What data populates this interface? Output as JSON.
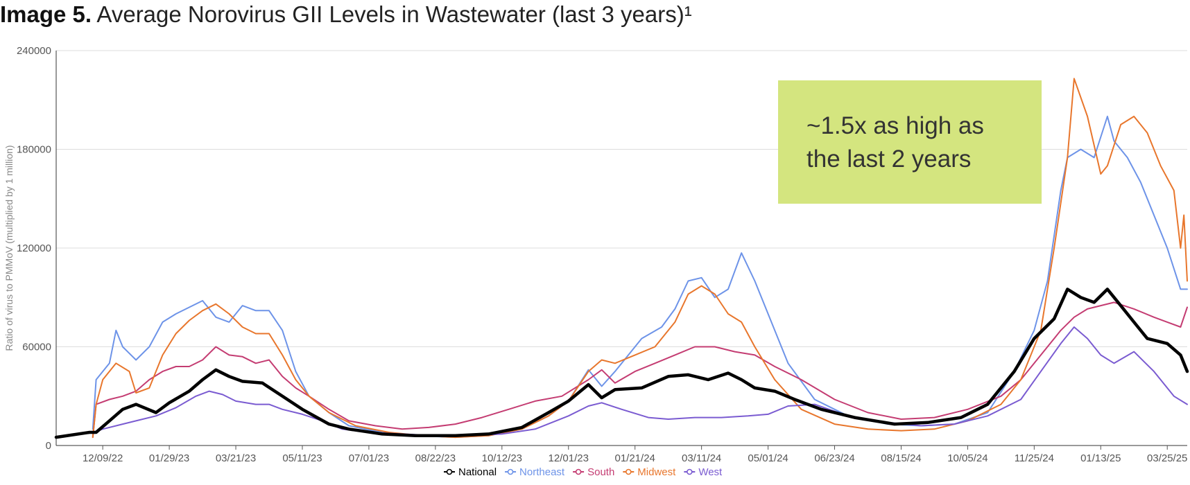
{
  "title": {
    "bold": "Image 5.",
    "text": " Average Norovirus GII Levels in Wastewater (last 3 years)¹"
  },
  "annotation": {
    "line1": "~1.5x as high as",
    "line2": "the last 2 years",
    "color": "#d4e57f"
  },
  "chart_data": {
    "type": "line",
    "title": "Average Norovirus GII Levels in Wastewater (last 3 years)",
    "xlabel": "",
    "ylabel": "Ratio of virus to PMMoV (multiplied by 1 million)",
    "ylim": [
      0,
      240000
    ],
    "yticks": [
      0,
      60000,
      120000,
      180000,
      240000
    ],
    "ytick_labels": [
      "0",
      "60000",
      "120000",
      "180000",
      "240000"
    ],
    "xlim": [
      -0.2,
      16.8
    ],
    "x_ticks": [
      {
        "x": 0.5,
        "label": "12/09/22"
      },
      {
        "x": 1.5,
        "label": "01/29/23"
      },
      {
        "x": 2.5,
        "label": "03/21/23"
      },
      {
        "x": 3.5,
        "label": "05/11/23"
      },
      {
        "x": 4.5,
        "label": "07/01/23"
      },
      {
        "x": 5.5,
        "label": "08/22/23"
      },
      {
        "x": 6.5,
        "label": "10/12/23"
      },
      {
        "x": 7.5,
        "label": "12/01/23"
      },
      {
        "x": 8.5,
        "label": "01/21/24"
      },
      {
        "x": 9.5,
        "label": "03/11/24"
      },
      {
        "x": 10.5,
        "label": "05/01/24"
      },
      {
        "x": 11.5,
        "label": "06/23/24"
      },
      {
        "x": 12.5,
        "label": "08/15/24"
      },
      {
        "x": 13.5,
        "label": "10/05/24"
      },
      {
        "x": 14.5,
        "label": "11/25/24"
      },
      {
        "x": 15.5,
        "label": "01/13/25"
      },
      {
        "x": 16.5,
        "label": "03/25/25"
      }
    ],
    "series": [
      {
        "name": "National",
        "color": "#000000",
        "x": [
          -0.2,
          0.3,
          0.4,
          0.6,
          0.8,
          1.0,
          1.3,
          1.5,
          1.8,
          2.0,
          2.2,
          2.4,
          2.6,
          2.9,
          3.2,
          3.5,
          3.9,
          4.2,
          4.7,
          5.2,
          5.8,
          6.3,
          6.8,
          7.2,
          7.5,
          7.8,
          8.0,
          8.2,
          8.6,
          9.0,
          9.3,
          9.6,
          9.9,
          10.1,
          10.3,
          10.6,
          10.9,
          11.3,
          11.8,
          12.4,
          12.9,
          13.4,
          13.8,
          14.2,
          14.5,
          14.8,
          15.0,
          15.2,
          15.4,
          15.6,
          15.8,
          16.0,
          16.2,
          16.5,
          16.7,
          16.8
        ],
        "y": [
          5000,
          8000,
          8000,
          15000,
          22000,
          25000,
          20000,
          26000,
          33000,
          40000,
          46000,
          42000,
          39000,
          38000,
          30000,
          22000,
          13000,
          10000,
          7000,
          6000,
          6000,
          7000,
          11000,
          20000,
          27000,
          37000,
          29000,
          34000,
          35000,
          42000,
          43000,
          40000,
          44000,
          40000,
          35000,
          33000,
          28000,
          22000,
          17000,
          13000,
          14000,
          17000,
          25000,
          45000,
          65000,
          77000,
          95000,
          90000,
          87000,
          95000,
          85000,
          75000,
          65000,
          62000,
          55000,
          45000
        ]
      },
      {
        "name": "Northeast",
        "color": "#6d93e8",
        "x": [
          0.35,
          0.4,
          0.6,
          0.7,
          0.8,
          1.0,
          1.2,
          1.4,
          1.6,
          1.8,
          2.0,
          2.2,
          2.4,
          2.6,
          2.8,
          3.0,
          3.2,
          3.4,
          3.6,
          3.9,
          4.2,
          4.7,
          5.2,
          5.8,
          6.3,
          6.8,
          7.2,
          7.5,
          7.8,
          8.0,
          8.2,
          8.4,
          8.6,
          8.9,
          9.1,
          9.3,
          9.5,
          9.7,
          9.9,
          10.1,
          10.3,
          10.5,
          10.8,
          11.2,
          11.7,
          12.3,
          12.8,
          13.3,
          13.8,
          14.2,
          14.5,
          14.7,
          14.9,
          15.0,
          15.2,
          15.4,
          15.6,
          15.7,
          15.9,
          16.1,
          16.3,
          16.5,
          16.7,
          16.8
        ],
        "y": [
          10000,
          40000,
          50000,
          70000,
          60000,
          52000,
          60000,
          75000,
          80000,
          84000,
          88000,
          78000,
          75000,
          85000,
          82000,
          82000,
          70000,
          45000,
          30000,
          20000,
          12000,
          8000,
          6000,
          5000,
          6000,
          10000,
          18000,
          27000,
          46000,
          36000,
          45000,
          55000,
          65000,
          72000,
          83000,
          100000,
          102000,
          90000,
          95000,
          117000,
          100000,
          80000,
          50000,
          28000,
          18000,
          13000,
          12000,
          13000,
          20000,
          45000,
          70000,
          100000,
          155000,
          175000,
          180000,
          175000,
          200000,
          185000,
          175000,
          160000,
          140000,
          120000,
          95000,
          95000
        ]
      },
      {
        "name": "South",
        "color": "#c43c72",
        "x": [
          0.35,
          0.4,
          0.6,
          0.8,
          1.0,
          1.2,
          1.4,
          1.6,
          1.8,
          2.0,
          2.2,
          2.4,
          2.6,
          2.8,
          3.0,
          3.2,
          3.4,
          3.6,
          3.9,
          4.2,
          4.6,
          5.0,
          5.4,
          5.8,
          6.2,
          6.6,
          7.0,
          7.4,
          7.8,
          8.0,
          8.2,
          8.5,
          8.8,
          9.1,
          9.4,
          9.7,
          10.0,
          10.3,
          10.6,
          11.0,
          11.5,
          12.0,
          12.5,
          13.0,
          13.5,
          14.0,
          14.3,
          14.6,
          14.9,
          15.1,
          15.3,
          15.5,
          15.7,
          16.0,
          16.3,
          16.5,
          16.7,
          16.8
        ],
        "y": [
          5000,
          25000,
          28000,
          30000,
          33000,
          40000,
          45000,
          48000,
          48000,
          52000,
          60000,
          55000,
          54000,
          50000,
          52000,
          42000,
          35000,
          30000,
          22000,
          15000,
          12000,
          10000,
          11000,
          13000,
          17000,
          22000,
          27000,
          30000,
          40000,
          46000,
          38000,
          45000,
          50000,
          55000,
          60000,
          60000,
          57000,
          55000,
          48000,
          40000,
          28000,
          20000,
          16000,
          17000,
          22000,
          30000,
          40000,
          55000,
          70000,
          78000,
          83000,
          85000,
          87000,
          83000,
          78000,
          75000,
          72000,
          84000
        ]
      },
      {
        "name": "Midwest",
        "color": "#e8762c",
        "x": [
          0.35,
          0.4,
          0.5,
          0.7,
          0.9,
          1.0,
          1.2,
          1.4,
          1.6,
          1.8,
          2.0,
          2.2,
          2.4,
          2.6,
          2.8,
          3.0,
          3.2,
          3.4,
          3.6,
          3.9,
          4.3,
          4.8,
          5.3,
          5.8,
          6.3,
          6.8,
          7.2,
          7.5,
          7.8,
          8.0,
          8.2,
          8.5,
          8.8,
          9.1,
          9.3,
          9.5,
          9.7,
          9.9,
          10.1,
          10.3,
          10.6,
          11.0,
          11.5,
          12.0,
          12.5,
          13.0,
          13.5,
          14.0,
          14.3,
          14.6,
          14.8,
          15.0,
          15.1,
          15.3,
          15.5,
          15.6,
          15.8,
          16.0,
          16.2,
          16.4,
          16.6,
          16.7,
          16.75,
          16.8
        ],
        "y": [
          5000,
          25000,
          40000,
          50000,
          45000,
          32000,
          35000,
          55000,
          68000,
          76000,
          82000,
          86000,
          80000,
          72000,
          68000,
          68000,
          55000,
          40000,
          30000,
          20000,
          12000,
          8000,
          6000,
          5000,
          6000,
          10000,
          18000,
          27000,
          45000,
          52000,
          50000,
          55000,
          60000,
          75000,
          92000,
          97000,
          92000,
          80000,
          75000,
          60000,
          40000,
          22000,
          13000,
          10000,
          9000,
          10000,
          15000,
          25000,
          40000,
          70000,
          120000,
          175000,
          223000,
          200000,
          165000,
          170000,
          195000,
          200000,
          190000,
          170000,
          155000,
          120000,
          140000,
          100000
        ]
      },
      {
        "name": "West",
        "color": "#7a5bd1",
        "x": [
          0.35,
          0.5,
          0.8,
          1.0,
          1.3,
          1.6,
          1.9,
          2.1,
          2.3,
          2.5,
          2.8,
          3.0,
          3.2,
          3.5,
          3.8,
          4.1,
          4.5,
          5.0,
          5.5,
          6.0,
          6.5,
          7.0,
          7.5,
          7.8,
          8.0,
          8.3,
          8.7,
          9.0,
          9.4,
          9.8,
          10.2,
          10.5,
          10.8,
          11.2,
          11.7,
          12.3,
          12.8,
          13.3,
          13.8,
          14.3,
          14.6,
          14.9,
          15.1,
          15.3,
          15.5,
          15.7,
          16.0,
          16.3,
          16.6,
          16.8
        ],
        "y": [
          8000,
          10000,
          13000,
          15000,
          18000,
          23000,
          30000,
          33000,
          31000,
          27000,
          25000,
          25000,
          22000,
          19000,
          15000,
          10000,
          8000,
          7000,
          6000,
          6000,
          7000,
          10000,
          18000,
          24000,
          26000,
          22000,
          17000,
          16000,
          17000,
          17000,
          18000,
          19000,
          24000,
          25000,
          18000,
          14000,
          12000,
          13000,
          18000,
          28000,
          45000,
          62000,
          72000,
          65000,
          55000,
          50000,
          57000,
          45000,
          30000,
          25000
        ]
      }
    ],
    "legend_position": "bottom-center"
  },
  "legend": [
    {
      "name": "National",
      "color": "#000000"
    },
    {
      "name": "Northeast",
      "color": "#6d93e8"
    },
    {
      "name": "South",
      "color": "#c43c72"
    },
    {
      "name": "Midwest",
      "color": "#e8762c"
    },
    {
      "name": "West",
      "color": "#7a5bd1"
    }
  ]
}
